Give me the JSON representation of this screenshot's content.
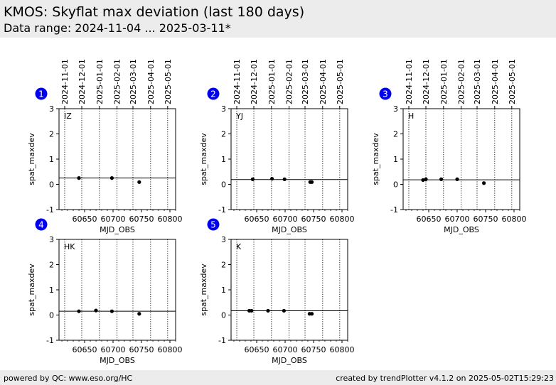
{
  "header": {
    "title": "KMOS: Skyflat max deviation (last 180 days)",
    "subtitle": "Data range: 2024-11-04 ... 2025-03-11*"
  },
  "footer": {
    "left": "powered by QC: www.eso.org/HC",
    "right": "created by trendPlotter v4.1.2 on 2025-05-02T15:29:23"
  },
  "colors": {
    "badge": "#0000ee",
    "badge_text": "#ffffff",
    "points": "#000000",
    "band": "#ececec"
  },
  "chart_data": [
    {
      "type": "scatter",
      "badge": "1",
      "label": "IZ",
      "xlabel": "MJD_OBS",
      "ylabel": "spat_maxdev",
      "xlim": [
        60605,
        60810
      ],
      "ylim": [
        -1,
        3
      ],
      "xticks": [
        60650,
        60700,
        60750,
        60800
      ],
      "yticks": [
        -1,
        0,
        1,
        2,
        3
      ],
      "date_ticks": [
        "2024-11-01",
        "2024-12-01",
        "2025-01-01",
        "2025-02-01",
        "2025-03-01",
        "2025-04-01",
        "2025-05-01"
      ],
      "grid": "vertical dotted at month boundaries",
      "reference_line": 0.25,
      "points": [
        {
          "x": 60640,
          "y": 0.25
        },
        {
          "x": 60698,
          "y": 0.25
        },
        {
          "x": 60746,
          "y": 0.09
        }
      ]
    },
    {
      "type": "scatter",
      "badge": "2",
      "label": "YJ",
      "xlabel": "MJD_OBS",
      "ylabel": "spat_maxdev",
      "xlim": [
        60605,
        60810
      ],
      "ylim": [
        -1,
        3
      ],
      "xticks": [
        60650,
        60700,
        60750,
        60800
      ],
      "yticks": [
        -1,
        0,
        1,
        2,
        3
      ],
      "date_ticks": [
        "2024-11-01",
        "2024-12-01",
        "2025-01-01",
        "2025-02-01",
        "2025-03-01",
        "2025-04-01",
        "2025-05-01"
      ],
      "grid": "vertical dotted at month boundaries",
      "reference_line": 0.19,
      "points": [
        {
          "x": 60643,
          "y": 0.2
        },
        {
          "x": 60677,
          "y": 0.22
        },
        {
          "x": 60699,
          "y": 0.2
        },
        {
          "x": 60744,
          "y": 0.09
        },
        {
          "x": 60747,
          "y": 0.09
        }
      ]
    },
    {
      "type": "scatter",
      "badge": "3",
      "label": "H",
      "xlabel": "MJD_OBS",
      "ylabel": "spat_maxdev",
      "xlim": [
        60605,
        60810
      ],
      "ylim": [
        -1,
        3
      ],
      "xticks": [
        60650,
        60700,
        60750,
        60800
      ],
      "yticks": [
        -1,
        0,
        1,
        2,
        3
      ],
      "date_ticks": [
        "2024-11-01",
        "2024-12-01",
        "2025-01-01",
        "2025-02-01",
        "2025-03-01",
        "2025-04-01",
        "2025-05-01"
      ],
      "grid": "vertical dotted at month boundaries",
      "reference_line": 0.18,
      "points": [
        {
          "x": 60640,
          "y": 0.17
        },
        {
          "x": 60645,
          "y": 0.2
        },
        {
          "x": 60672,
          "y": 0.2
        },
        {
          "x": 60700,
          "y": 0.2
        },
        {
          "x": 60747,
          "y": 0.05
        }
      ]
    },
    {
      "type": "scatter",
      "badge": "4",
      "label": "HK",
      "xlabel": "MJD_OBS",
      "ylabel": "spat_maxdev",
      "xlim": [
        60605,
        60810
      ],
      "ylim": [
        -1,
        3
      ],
      "xticks": [
        60650,
        60700,
        60750,
        60800
      ],
      "yticks": [
        -1,
        0,
        1,
        2,
        3
      ],
      "date_ticks": [],
      "grid": "vertical dotted at month boundaries",
      "reference_line": 0.15,
      "points": [
        {
          "x": 60640,
          "y": 0.15
        },
        {
          "x": 60670,
          "y": 0.18
        },
        {
          "x": 60698,
          "y": 0.15
        },
        {
          "x": 60746,
          "y": 0.05
        }
      ]
    },
    {
      "type": "scatter",
      "badge": "5",
      "label": "K",
      "xlabel": "MJD_OBS",
      "ylabel": "spat_maxdev",
      "xlim": [
        60605,
        60810
      ],
      "ylim": [
        -1,
        3
      ],
      "xticks": [
        60650,
        60700,
        60750,
        60800
      ],
      "yticks": [
        -1,
        0,
        1,
        2,
        3
      ],
      "date_ticks": [],
      "grid": "vertical dotted at month boundaries",
      "reference_line": 0.17,
      "points": [
        {
          "x": 60637,
          "y": 0.17
        },
        {
          "x": 60641,
          "y": 0.17
        },
        {
          "x": 60670,
          "y": 0.17
        },
        {
          "x": 60698,
          "y": 0.17
        },
        {
          "x": 60743,
          "y": 0.05
        },
        {
          "x": 60747,
          "y": 0.05
        }
      ]
    }
  ]
}
